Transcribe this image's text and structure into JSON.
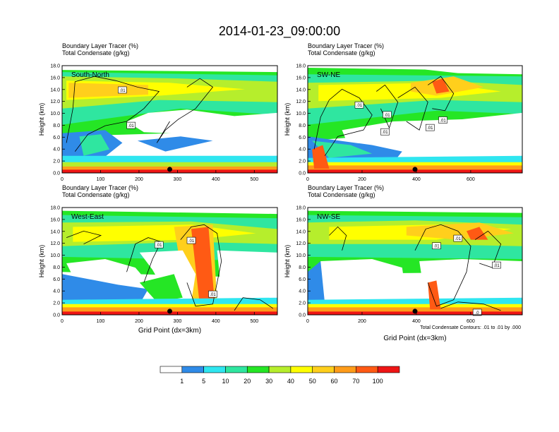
{
  "title": "2014-01-23_09:00:00",
  "colors": {
    "levels": [
      "#ffffff",
      "#2f8be8",
      "#2fe6f0",
      "#2fe6a0",
      "#25e625",
      "#b6ee2c",
      "#ffff00",
      "#ffcf1c",
      "#ff9c1a",
      "#ff5a14",
      "#ee1515"
    ],
    "contour": "#000000",
    "marker": "#000000"
  },
  "chart_data": [
    {
      "type": "heatmap",
      "panel_label": "South-North",
      "label_line1": "Boundary Layer Tracer   (%)",
      "label_line2": "Total Condensate   (g/kg)",
      "ylabel": "Height (km)",
      "ylim": [
        0,
        18
      ],
      "xlim": [
        0,
        560
      ],
      "yticks": [
        "0.0",
        "2.0",
        "4.0",
        "6.0",
        "8.0",
        "10.0",
        "12.0",
        "14.0",
        "16.0",
        "18.0"
      ],
      "xticks": [
        0,
        100,
        200,
        300,
        400,
        500
      ],
      "marker_x": 280,
      "contour_labels": [
        ".01",
        ".01"
      ]
    },
    {
      "type": "heatmap",
      "panel_label": "SW-NE",
      "label_line1": "Boundary Layer Tracer   (%)",
      "label_line2": "Total Condensate   (g/kg)",
      "ylabel": "Height (km)",
      "ylim": [
        0,
        18
      ],
      "xlim": [
        0,
        790
      ],
      "yticks": [
        "0.0",
        "2.0",
        "4.0",
        "6.0",
        "8.0",
        "10.0",
        "12.0",
        "14.0",
        "16.0",
        "18.0"
      ],
      "xticks": [
        0,
        200,
        400,
        600
      ],
      "marker_x": 395,
      "contour_labels": [
        ".01",
        ".01",
        ".01",
        ".01",
        ".01"
      ]
    },
    {
      "type": "heatmap",
      "panel_label": "West-East",
      "label_line1": "Boundary Layer Tracer   (%)",
      "label_line2": "Total Condensate   (g/kg)",
      "ylabel": "Height (km)",
      "xlabel": "Grid Point (dx=3km)",
      "ylim": [
        0,
        18
      ],
      "xlim": [
        0,
        560
      ],
      "yticks": [
        "0.0",
        "2.0",
        "4.0",
        "6.0",
        "8.0",
        "10.0",
        "12.0",
        "14.0",
        "16.0",
        "18.0"
      ],
      "xticks": [
        0,
        100,
        200,
        300,
        400,
        500
      ],
      "marker_x": 280,
      "contour_labels": [
        ".01",
        ".01",
        ".01"
      ]
    },
    {
      "type": "heatmap",
      "panel_label": "NW-SE",
      "label_line1": "Boundary Layer Tracer   (%)",
      "label_line2": "Total Condensate   (g/kg)",
      "ylabel": "Height (km)",
      "xlabel": "Grid Point (dx=3km)",
      "ylim": [
        0,
        18
      ],
      "xlim": [
        0,
        790
      ],
      "yticks": [
        "0.0",
        "2.0",
        "4.0",
        "6.0",
        "8.0",
        "10.0",
        "12.0",
        "14.0",
        "16.0",
        "18.0"
      ],
      "xticks": [
        0,
        200,
        400,
        600
      ],
      "marker_x": 395,
      "contour_labels": [
        ".01",
        ".01",
        ".01",
        ".0"
      ],
      "footnote": "Total Condensate Contours: .01 to .01 by .000"
    }
  ],
  "colorbar": {
    "labels": [
      "1",
      "5",
      "10",
      "20",
      "30",
      "40",
      "50",
      "60",
      "70",
      "100"
    ]
  }
}
